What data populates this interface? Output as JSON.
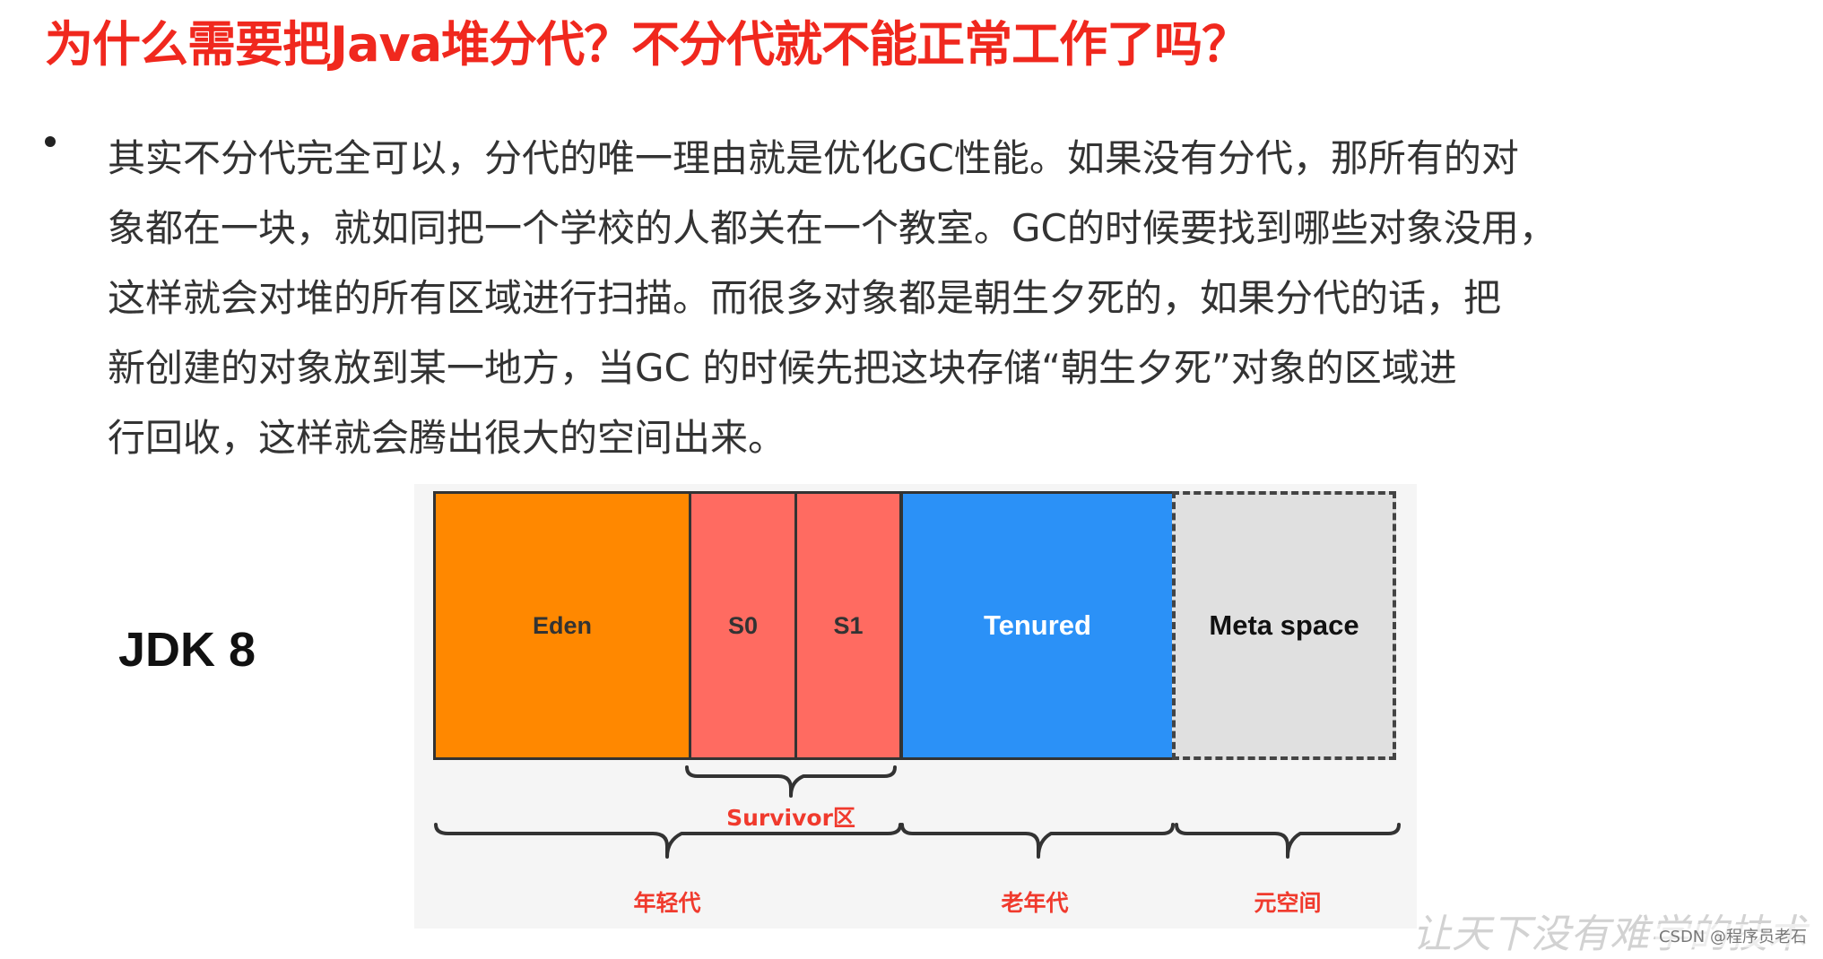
{
  "slide": {
    "title": "为什么需要把Java堆分代？不分代就不能正常工作了吗？",
    "body_lines": [
      "其实不分代完全可以，分代的唯一理由就是优化GC性能。如果没有分代，那所有的对",
      "象都在一块，就如同把一个学校的人都关在一个教室。GC的时候要找到哪些对象没用，",
      "这样就会对堆的所有区域进行扫描。而很多对象都是朝生夕死的，如果分代的话，把",
      "新创建的对象放到某一地方，当GC  的时候先把这块存储“朝生夕死”对象的区域进",
      "行回收，这样就会腾出很大的空间出来。"
    ]
  },
  "diagram": {
    "version_label": "JDK 8",
    "segments": {
      "eden": "Eden",
      "s0": "S0",
      "s1": "S1",
      "tenured": "Tenured",
      "meta": "Meta space"
    },
    "braces": {
      "survivor": "Survivor区",
      "young": "年轻代",
      "old": "老年代",
      "meta": "元空间"
    },
    "colors": {
      "eden": "#ff8800",
      "survivor": "#ff6b61",
      "tenured": "#2b91f7",
      "meta": "#e0e0e0",
      "label_red": "#f03a2d",
      "title_red": "#f0281e"
    }
  },
  "watermark": "让天下没有难学的技术",
  "credit": "CSDN @程序员老石"
}
